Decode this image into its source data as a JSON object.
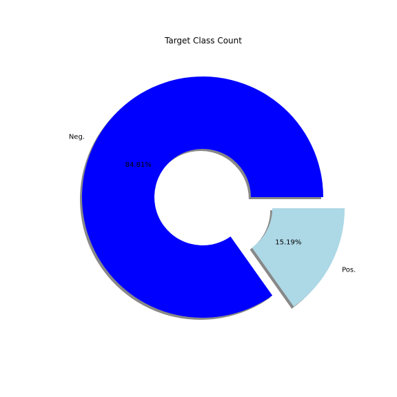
{
  "chart_data": {
    "type": "pie",
    "variant": "donut",
    "title": "Target Class Count",
    "labels": [
      "Neg.",
      "Pos."
    ],
    "values": [
      84.81,
      15.19
    ],
    "percent_labels": [
      "84.81%",
      "15.19%"
    ],
    "colors": [
      "#0000ff",
      "#add8e6"
    ],
    "exploded": [
      false,
      true
    ],
    "shadow": true,
    "legend": "none"
  }
}
